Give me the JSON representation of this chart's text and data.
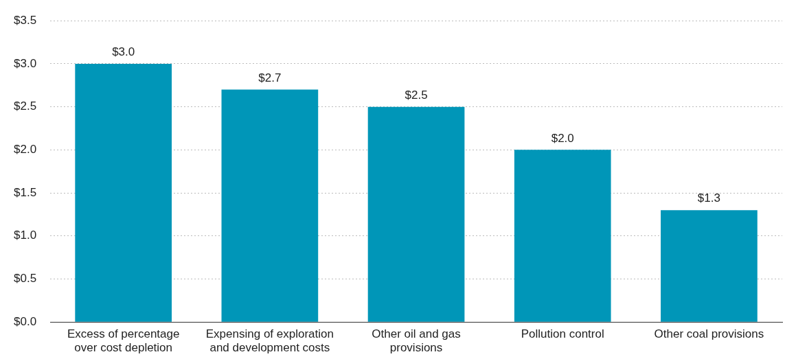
{
  "chart_data": {
    "type": "bar",
    "categories": [
      "Excess of percentage over cost depletion",
      "Expensing of exploration and development costs",
      "Other oil and gas provisions",
      "Pollution control",
      "Other coal provisions"
    ],
    "values": [
      3.0,
      2.7,
      2.5,
      2.0,
      1.3
    ],
    "value_labels": [
      "$3.0",
      "$2.7",
      "$2.5",
      "$2.0",
      "$1.3"
    ],
    "color": "#0096b8",
    "ylim": [
      0,
      3.5
    ],
    "yticks": [
      {
        "value": 0,
        "label": "$0.0"
      },
      {
        "value": 0.5,
        "label": "$0.5"
      },
      {
        "value": 1,
        "label": "$1.0"
      },
      {
        "value": 1.5,
        "label": "$1.5"
      },
      {
        "value": 2,
        "label": "$2.0"
      },
      {
        "value": 2.5,
        "label": "$2.5"
      },
      {
        "value": 3,
        "label": "$3.0"
      },
      {
        "value": 3.5,
        "label": "$3.5"
      }
    ],
    "grid": "y",
    "legend": false
  }
}
